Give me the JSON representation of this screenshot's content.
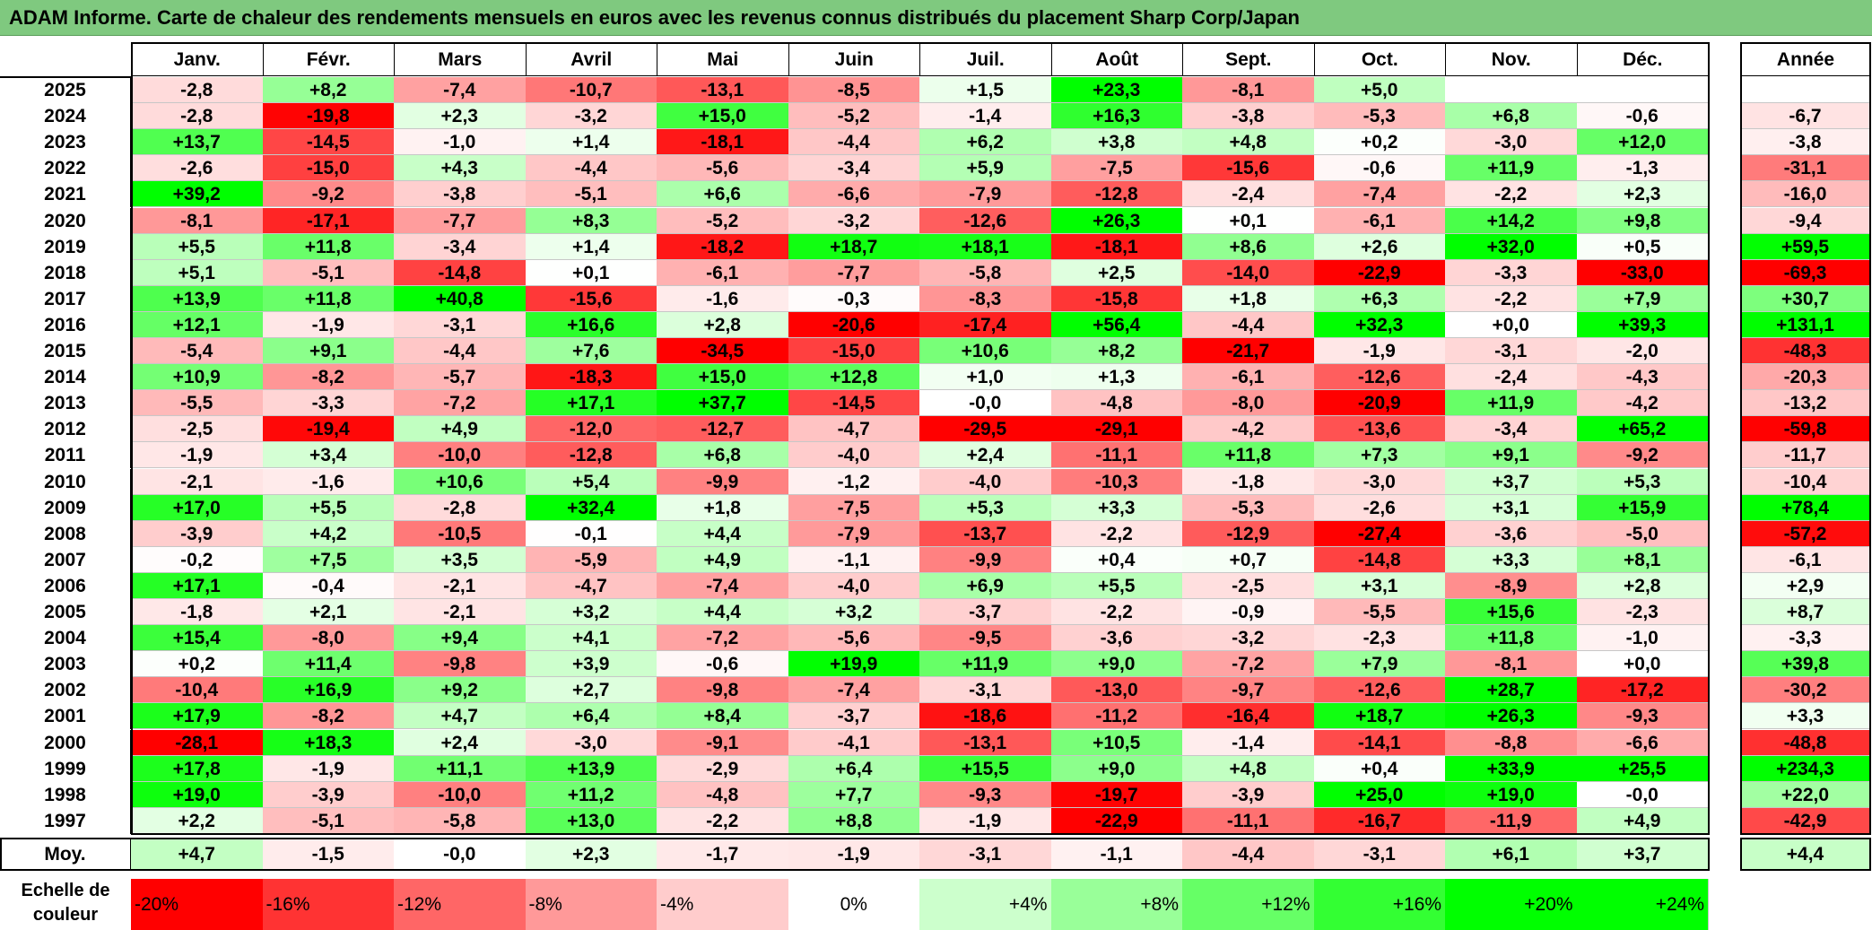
{
  "title": "ADAM Informe. Carte de chaleur des rendements mensuels en euros avec les revenus connus distribués du placement Sharp Corp/Japan",
  "chart_data": {
    "type": "heatmap",
    "columns": [
      "Janv.",
      "Févr.",
      "Mars",
      "Avril",
      "Mai",
      "Juin",
      "Juil.",
      "Août",
      "Sept.",
      "Oct.",
      "Nov.",
      "Déc."
    ],
    "year_header": "Année",
    "years": [
      "2025",
      "2024",
      "2023",
      "2022",
      "2021",
      "2020",
      "2019",
      "2018",
      "2017",
      "2016",
      "2015",
      "2014",
      "2013",
      "2012",
      "2011",
      "2010",
      "2009",
      "2008",
      "2007",
      "2006",
      "2005",
      "2004",
      "2003",
      "2002",
      "2001",
      "2000",
      "1999",
      "1998",
      "1997"
    ],
    "values": [
      [
        "-2,8",
        "+8,2",
        "-7,4",
        "-10,7",
        "-13,1",
        "-8,5",
        "+1,5",
        "+23,3",
        "-8,1",
        "+5,0",
        "",
        ""
      ],
      [
        "-2,8",
        "-19,8",
        "+2,3",
        "-3,2",
        "+15,0",
        "-5,2",
        "-1,4",
        "+16,3",
        "-3,8",
        "-5,3",
        "+6,8",
        "-0,6"
      ],
      [
        "+13,7",
        "-14,5",
        "-1,0",
        "+1,4",
        "-18,1",
        "-4,4",
        "+6,2",
        "+3,8",
        "+4,8",
        "+0,2",
        "-3,0",
        "+12,0"
      ],
      [
        "-2,6",
        "-15,0",
        "+4,3",
        "-4,4",
        "-5,6",
        "-3,4",
        "+5,9",
        "-7,5",
        "-15,6",
        "-0,6",
        "+11,9",
        "-1,3"
      ],
      [
        "+39,2",
        "-9,2",
        "-3,8",
        "-5,1",
        "+6,6",
        "-6,6",
        "-7,9",
        "-12,8",
        "-2,4",
        "-7,4",
        "-2,2",
        "+2,3"
      ],
      [
        "-8,1",
        "-17,1",
        "-7,7",
        "+8,3",
        "-5,2",
        "-3,2",
        "-12,6",
        "+26,3",
        "+0,1",
        "-6,1",
        "+14,2",
        "+9,8"
      ],
      [
        "+5,5",
        "+11,8",
        "-3,4",
        "+1,4",
        "-18,2",
        "+18,7",
        "+18,1",
        "-18,1",
        "+8,6",
        "+2,6",
        "+32,0",
        "+0,5"
      ],
      [
        "+5,1",
        "-5,1",
        "-14,8",
        "+0,1",
        "-6,1",
        "-7,7",
        "-5,8",
        "+2,5",
        "-14,0",
        "-22,9",
        "-3,3",
        "-33,0"
      ],
      [
        "+13,9",
        "+11,8",
        "+40,8",
        "-15,6",
        "-1,6",
        "-0,3",
        "-8,3",
        "-15,8",
        "+1,8",
        "+6,3",
        "-2,2",
        "+7,9"
      ],
      [
        "+12,1",
        "-1,9",
        "-3,1",
        "+16,6",
        "+2,8",
        "-20,6",
        "-17,4",
        "+56,4",
        "-4,4",
        "+32,3",
        "+0,0",
        "+39,3"
      ],
      [
        "-5,4",
        "+9,1",
        "-4,4",
        "+7,6",
        "-34,5",
        "-15,0",
        "+10,6",
        "+8,2",
        "-21,7",
        "-1,9",
        "-3,1",
        "-2,0"
      ],
      [
        "+10,9",
        "-8,2",
        "-5,7",
        "-18,3",
        "+15,0",
        "+12,8",
        "+1,0",
        "+1,3",
        "-6,1",
        "-12,6",
        "-2,4",
        "-4,3"
      ],
      [
        "-5,5",
        "-3,3",
        "-7,2",
        "+17,1",
        "+37,7",
        "-14,5",
        "-0,0",
        "-4,8",
        "-8,0",
        "-20,9",
        "+11,9",
        "-4,2"
      ],
      [
        "-2,5",
        "-19,4",
        "+4,9",
        "-12,0",
        "-12,7",
        "-4,7",
        "-29,5",
        "-29,1",
        "-4,2",
        "-13,6",
        "-3,4",
        "+65,2"
      ],
      [
        "-1,9",
        "+3,4",
        "-10,0",
        "-12,8",
        "+6,8",
        "-4,0",
        "+2,4",
        "-11,1",
        "+11,8",
        "+7,3",
        "+9,1",
        "-9,2"
      ],
      [
        "-2,1",
        "-1,6",
        "+10,6",
        "+5,4",
        "-9,9",
        "-1,2",
        "-4,0",
        "-10,3",
        "-1,8",
        "-3,0",
        "+3,7",
        "+5,3"
      ],
      [
        "+17,0",
        "+5,5",
        "-2,8",
        "+32,4",
        "+1,8",
        "-7,5",
        "+5,3",
        "+3,3",
        "-5,3",
        "-2,6",
        "+3,1",
        "+15,9"
      ],
      [
        "-3,9",
        "+4,2",
        "-10,5",
        "-0,1",
        "+4,4",
        "-7,9",
        "-13,7",
        "-2,2",
        "-12,9",
        "-27,4",
        "-3,6",
        "-5,0"
      ],
      [
        "-0,2",
        "+7,5",
        "+3,5",
        "-5,9",
        "+4,9",
        "-1,1",
        "-9,9",
        "+0,4",
        "+0,7",
        "-14,8",
        "+3,3",
        "+8,1"
      ],
      [
        "+17,1",
        "-0,4",
        "-2,1",
        "-4,7",
        "-7,4",
        "-4,0",
        "+6,9",
        "+5,5",
        "-2,5",
        "+3,1",
        "-8,9",
        "+2,8"
      ],
      [
        "-1,8",
        "+2,1",
        "-2,1",
        "+3,2",
        "+4,4",
        "+3,2",
        "-3,7",
        "-2,2",
        "-0,9",
        "-5,5",
        "+15,6",
        "-2,3"
      ],
      [
        "+15,4",
        "-8,0",
        "+9,4",
        "+4,1",
        "-7,2",
        "-5,6",
        "-9,5",
        "-3,6",
        "-3,2",
        "-2,3",
        "+11,8",
        "-1,0"
      ],
      [
        "+0,2",
        "+11,4",
        "-9,8",
        "+3,9",
        "-0,6",
        "+19,9",
        "+11,9",
        "+9,0",
        "-7,2",
        "+7,9",
        "-8,1",
        "+0,0"
      ],
      [
        "-10,4",
        "+16,9",
        "+9,2",
        "+2,7",
        "-9,8",
        "-7,4",
        "-3,1",
        "-13,0",
        "-9,7",
        "-12,6",
        "+28,7",
        "-17,2"
      ],
      [
        "+17,9",
        "-8,2",
        "+4,7",
        "+6,4",
        "+8,4",
        "-3,7",
        "-18,6",
        "-11,2",
        "-16,4",
        "+18,7",
        "+26,3",
        "-9,3"
      ],
      [
        "-28,1",
        "+18,3",
        "+2,4",
        "-3,0",
        "-9,1",
        "-4,1",
        "-13,1",
        "+10,5",
        "-1,4",
        "-14,1",
        "-8,8",
        "-6,6"
      ],
      [
        "+17,8",
        "-1,9",
        "+11,1",
        "+13,9",
        "-2,9",
        "+6,4",
        "+15,5",
        "+9,0",
        "+4,8",
        "+0,4",
        "+33,9",
        "+25,5"
      ],
      [
        "+19,0",
        "-3,9",
        "-10,0",
        "+11,2",
        "-4,8",
        "+7,7",
        "-9,3",
        "-19,7",
        "-3,9",
        "+25,0",
        "+19,0",
        "-0,0"
      ],
      [
        "+2,2",
        "-5,1",
        "-5,8",
        "+13,0",
        "-2,2",
        "+8,8",
        "-1,9",
        "-22,9",
        "-11,1",
        "-16,7",
        "-11,9",
        "+4,9"
      ]
    ],
    "annual": [
      "",
      "-6,7",
      "-3,8",
      "-31,1",
      "-16,0",
      "-9,4",
      "+59,5",
      "-69,3",
      "+30,7",
      "+131,1",
      "-48,3",
      "-20,3",
      "-13,2",
      "-59,8",
      "-11,7",
      "-10,4",
      "+78,4",
      "-57,2",
      "-6,1",
      "+2,9",
      "+8,7",
      "-3,3",
      "+39,8",
      "-30,2",
      "+3,3",
      "-48,8",
      "+234,3",
      "+22,0",
      "-42,9"
    ],
    "average_label": "Moy.",
    "averages": [
      "+4,7",
      "-1,5",
      "-0,0",
      "+2,3",
      "-1,7",
      "-1,9",
      "-3,1",
      "-1,1",
      "-4,4",
      "-3,1",
      "+6,1",
      "+3,7"
    ],
    "average_annual": "+4,4",
    "color_scale": {
      "label": "Echelle de\ncouleur",
      "stops": [
        "-20%",
        "-16%",
        "-12%",
        "-8%",
        "-4%",
        "0%",
        "+4%",
        "+8%",
        "+12%",
        "+16%",
        "+20%",
        "+24%"
      ],
      "stop_values": [
        -20,
        -16,
        -12,
        -8,
        -4,
        0,
        4,
        8,
        12,
        16,
        20,
        24
      ],
      "negative_color": "#ff0000",
      "positive_color": "#00ff00",
      "neutral_color": "#ffffff"
    }
  }
}
